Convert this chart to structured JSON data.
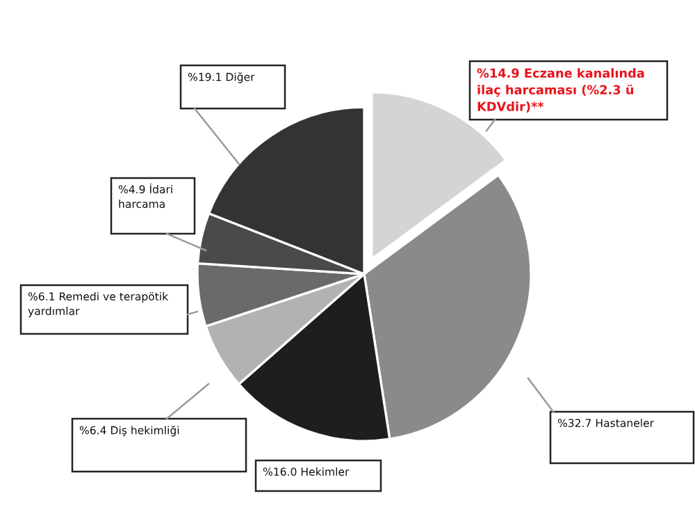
{
  "chart_data": {
    "type": "pie",
    "categories": [
      "Eczane kanalında ilaç harcaması (%2.3 ü KDVdir)**",
      "Hastaneler",
      "Hekimler",
      "Diş hekimliği",
      "Remedi ve terapötik yardımlar",
      "İdari harcama",
      "Diğer"
    ],
    "values": [
      14.9,
      32.7,
      16.0,
      6.4,
      6.1,
      4.9,
      19.1
    ],
    "value_labels": [
      "%14.9",
      "%32.7",
      "%16.0",
      "%6.4",
      "%6.1",
      "%4.9",
      "%19.1"
    ],
    "colors": [
      "#d4d4d4",
      "#8a8a8a",
      "#1e1e1e",
      "#b2b2b2",
      "#6a6a6a",
      "#4a4a4a",
      "#333333"
    ],
    "legend": false
  }
}
